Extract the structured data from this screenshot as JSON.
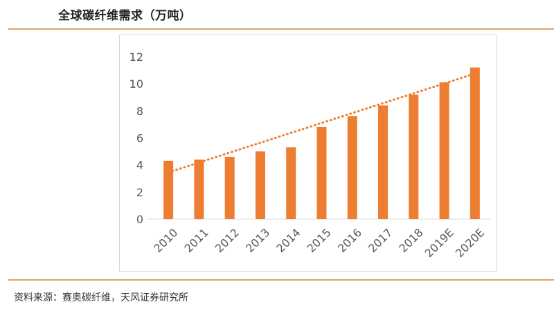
{
  "page": {
    "title": "全球碳纤维需求（万吨）",
    "source": "资料来源：赛奥碳纤维，天风证券研究所"
  },
  "colors": {
    "accent": "#ED7D31",
    "rule": "#D9A56B",
    "axis_text": "#595959"
  },
  "chart_data": {
    "type": "bar",
    "categories": [
      "2010",
      "2011",
      "2012",
      "2013",
      "2014",
      "2015",
      "2016",
      "2017",
      "2018",
      "2019E",
      "2020E"
    ],
    "series": [
      {
        "values": [
          4.3,
          4.4,
          4.6,
          5.0,
          5.3,
          6.8,
          7.6,
          8.4,
          9.2,
          10.1,
          11.2
        ]
      }
    ],
    "trendline": {
      "type": "linear",
      "style": "dotted",
      "from": 3.45,
      "to": 10.75
    },
    "ylim": [
      0,
      12
    ],
    "yticks": [
      0,
      2,
      4,
      6,
      8,
      10,
      12
    ],
    "xlabel": "",
    "ylabel": "",
    "grid": false,
    "legend": "none",
    "xtick_rotation": -45
  }
}
